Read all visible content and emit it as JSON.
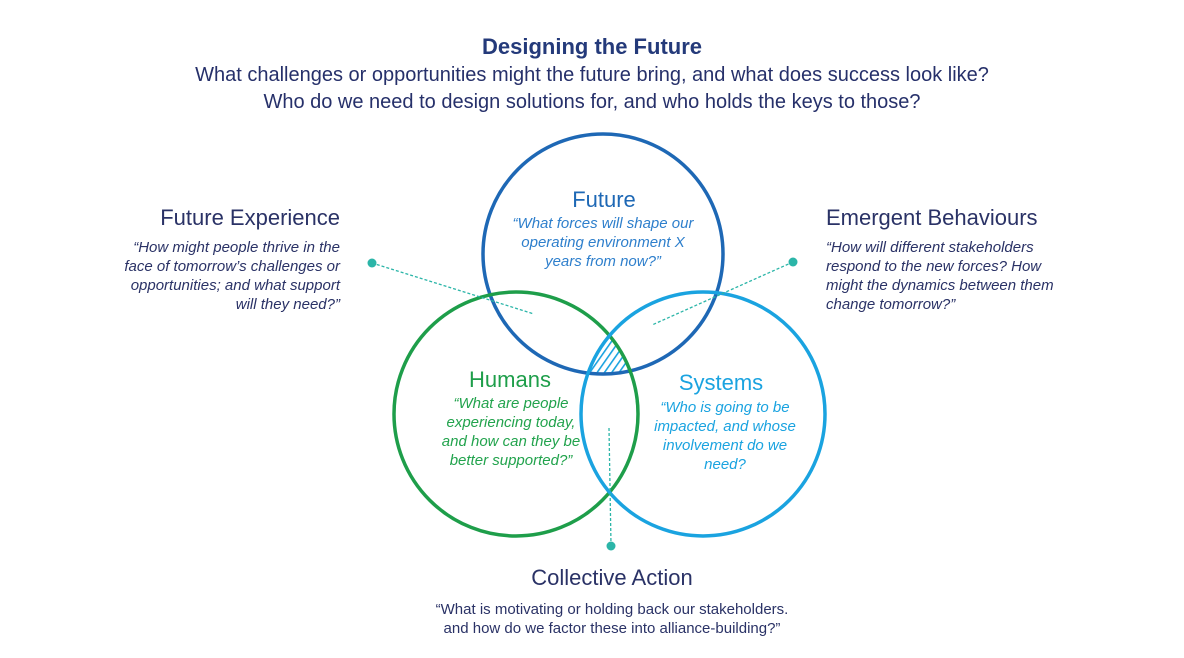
{
  "header": {
    "title": "Designing the Future",
    "subtitle_line1": "What challenges or opportunities might the future bring, and what does success look like?",
    "subtitle_line2": "Who do we need to design solutions for, and who holds the keys to those?"
  },
  "future_experience": {
    "heading": "Future Experience",
    "quote_lines": [
      "“How might people thrive in the",
      "face of tomorrow’s challenges or",
      "opportunities; and what support",
      "will they need?”"
    ]
  },
  "emergent_behaviours": {
    "heading": "Emergent Behaviours",
    "quote_lines": [
      "“How will different stakeholders",
      "respond to the new forces? How",
      "might the dynamics between them",
      "change tomorrow?”"
    ]
  },
  "circles": {
    "future": {
      "heading": "Future",
      "quote_lines": [
        "“What forces will shape our",
        "operating environment X",
        "years from now?”"
      ],
      "color": "#1e68b5"
    },
    "humans": {
      "heading": "Humans",
      "quote_lines": [
        "“What are people",
        "experiencing today,",
        "and how can they be",
        "better supported?”"
      ],
      "color": "#1e9e4a"
    },
    "systems": {
      "heading": "Systems",
      "quote_lines": [
        "“Who is going to be",
        "impacted, and whose",
        "involvement do we",
        "need?"
      ],
      "color": "#1aa3e0"
    }
  },
  "collective_action": {
    "heading": "Collective Action",
    "quote_lines": [
      "“What is motivating or holding back our stakeholders.",
      "and how do we factor these into alliance-building?”"
    ]
  },
  "connector_color": "#2bb5a8"
}
